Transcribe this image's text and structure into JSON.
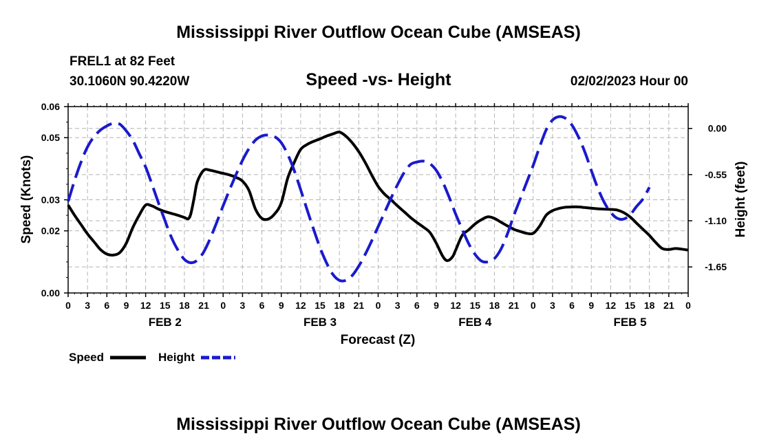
{
  "page": {
    "title": "Mississippi River Outflow Ocean Cube (AMSEAS)",
    "footer_title": "Mississippi River Outflow Ocean Cube (AMSEAS)",
    "station_line": "FREL1 at 82 Feet",
    "coords_line": "30.1060N  90.4220W",
    "date_line": "02/02/2023 Hour 00"
  },
  "chart_data": {
    "type": "line",
    "title": "Speed -vs- Height",
    "xlabel": "Forecast (Z)",
    "ylabel": "Speed (Knots)",
    "y2label": "Height (feet)",
    "x_tick_labels": [
      "0",
      "3",
      "6",
      "9",
      "12",
      "15",
      "18",
      "21",
      "0",
      "3",
      "6",
      "9",
      "12",
      "15",
      "18",
      "21",
      "0",
      "3",
      "6",
      "9",
      "12",
      "15",
      "18",
      "21",
      "0",
      "3",
      "6",
      "9",
      "12",
      "15",
      "18",
      "21",
      "0"
    ],
    "day_labels": [
      {
        "label": "FEB 2",
        "hour": 15
      },
      {
        "label": "FEB 3",
        "hour": 39
      },
      {
        "label": "FEB 4",
        "hour": 63
      },
      {
        "label": "FEB 5",
        "hour": 87
      }
    ],
    "xlim": [
      0,
      96
    ],
    "ylim": [
      0,
      0.06
    ],
    "yticks": [
      0,
      0.02,
      0.03,
      0.05,
      0.06
    ],
    "ytick_labels": [
      "0.00",
      "0.02",
      "0.03",
      "0.05",
      "0.06"
    ],
    "y2lim": [
      -1.96,
      0.26
    ],
    "y2ticks": [
      0,
      -0.55,
      -1.1,
      -1.65
    ],
    "y2tick_labels": [
      "0.00",
      "-0.55",
      "-1.10",
      "-1.65"
    ],
    "grid": true,
    "series": [
      {
        "name": "Speed",
        "axis": "left",
        "color": "#000000",
        "style": "solid",
        "points": [
          [
            0,
            0.0283
          ],
          [
            1,
            0.025
          ],
          [
            2,
            0.022
          ],
          [
            3,
            0.019
          ],
          [
            4,
            0.0165
          ],
          [
            5,
            0.014
          ],
          [
            6,
            0.0125
          ],
          [
            7,
            0.0122
          ],
          [
            8,
            0.013
          ],
          [
            9,
            0.016
          ],
          [
            10,
            0.021
          ],
          [
            11,
            0.025
          ],
          [
            12,
            0.0283
          ],
          [
            13,
            0.028
          ],
          [
            14,
            0.027
          ],
          [
            15,
            0.0262
          ],
          [
            16,
            0.0256
          ],
          [
            17,
            0.025
          ],
          [
            18,
            0.0243
          ],
          [
            18.6,
            0.0239
          ],
          [
            19,
            0.0255
          ],
          [
            19.5,
            0.0305
          ],
          [
            20,
            0.0358
          ],
          [
            21,
            0.0395
          ],
          [
            22,
            0.0395
          ],
          [
            23,
            0.039
          ],
          [
            24,
            0.0385
          ],
          [
            25,
            0.038
          ],
          [
            26,
            0.0372
          ],
          [
            27,
            0.036
          ],
          [
            28,
            0.033
          ],
          [
            29,
            0.027
          ],
          [
            30,
            0.024
          ],
          [
            31,
            0.0238
          ],
          [
            32,
            0.0255
          ],
          [
            33,
            0.029
          ],
          [
            34,
            0.037
          ],
          [
            35,
            0.042
          ],
          [
            36,
            0.0462
          ],
          [
            37,
            0.0478
          ],
          [
            38,
            0.0488
          ],
          [
            39,
            0.0496
          ],
          [
            40,
            0.0505
          ],
          [
            41,
            0.0512
          ],
          [
            42,
            0.0518
          ],
          [
            43,
            0.0505
          ],
          [
            44,
            0.0483
          ],
          [
            45,
            0.0455
          ],
          [
            46,
            0.042
          ],
          [
            47,
            0.038
          ],
          [
            48,
            0.0343
          ],
          [
            49,
            0.0318
          ],
          [
            50,
            0.03
          ],
          [
            51,
            0.028
          ],
          [
            52,
            0.0262
          ],
          [
            53,
            0.0243
          ],
          [
            54,
            0.0227
          ],
          [
            55,
            0.0212
          ],
          [
            56,
            0.0195
          ],
          [
            57,
            0.016
          ],
          [
            58,
            0.0118
          ],
          [
            58.7,
            0.0104
          ],
          [
            59.5,
            0.0116
          ],
          [
            60,
            0.0138
          ],
          [
            61,
            0.0185
          ],
          [
            62,
            0.0203
          ],
          [
            63,
            0.0222
          ],
          [
            64,
            0.0236
          ],
          [
            65,
            0.0245
          ],
          [
            66,
            0.024
          ],
          [
            67,
            0.0228
          ],
          [
            68,
            0.0216
          ],
          [
            69,
            0.0205
          ],
          [
            70,
            0.0198
          ],
          [
            71,
            0.0192
          ],
          [
            72,
            0.0192
          ],
          [
            73,
            0.0215
          ],
          [
            74,
            0.025
          ],
          [
            75,
            0.0265
          ],
          [
            76,
            0.0272
          ],
          [
            77,
            0.0276
          ],
          [
            78,
            0.0277
          ],
          [
            79,
            0.0277
          ],
          [
            80,
            0.0275
          ],
          [
            81,
            0.0273
          ],
          [
            82,
            0.0271
          ],
          [
            83,
            0.027
          ],
          [
            84,
            0.0269
          ],
          [
            85,
            0.0267
          ],
          [
            86,
            0.0259
          ],
          [
            87,
            0.0245
          ],
          [
            88,
            0.0225
          ],
          [
            89,
            0.0205
          ],
          [
            90,
            0.0185
          ],
          [
            91,
            0.0162
          ],
          [
            92,
            0.0143
          ],
          [
            93,
            0.014
          ],
          [
            94,
            0.0143
          ],
          [
            95,
            0.0141
          ],
          [
            96,
            0.0138
          ]
        ]
      },
      {
        "name": "Height",
        "axis": "right",
        "color": "#1a1acc",
        "style": "dashed",
        "points": [
          [
            0,
            -0.87
          ],
          [
            1,
            -0.62
          ],
          [
            2,
            -0.4
          ],
          [
            3,
            -0.22
          ],
          [
            4,
            -0.1
          ],
          [
            5,
            -0.02
          ],
          [
            6,
            0.03
          ],
          [
            7,
            0.06
          ],
          [
            8,
            0.05
          ],
          [
            9,
            -0.03
          ],
          [
            10,
            -0.14
          ],
          [
            11,
            -0.3
          ],
          [
            12,
            -0.46
          ],
          [
            13,
            -0.67
          ],
          [
            14,
            -0.89
          ],
          [
            15,
            -1.1
          ],
          [
            16,
            -1.3
          ],
          [
            17,
            -1.45
          ],
          [
            18,
            -1.56
          ],
          [
            19,
            -1.6
          ],
          [
            20,
            -1.57
          ],
          [
            21,
            -1.47
          ],
          [
            22,
            -1.31
          ],
          [
            23,
            -1.12
          ],
          [
            24,
            -0.92
          ],
          [
            25,
            -0.73
          ],
          [
            26,
            -0.55
          ],
          [
            27,
            -0.38
          ],
          [
            28,
            -0.24
          ],
          [
            29,
            -0.14
          ],
          [
            30,
            -0.09
          ],
          [
            31,
            -0.08
          ],
          [
            32,
            -0.1
          ],
          [
            33,
            -0.17
          ],
          [
            34,
            -0.31
          ],
          [
            35,
            -0.5
          ],
          [
            36,
            -0.73
          ],
          [
            37,
            -0.97
          ],
          [
            38,
            -1.2
          ],
          [
            39,
            -1.42
          ],
          [
            40,
            -1.6
          ],
          [
            41,
            -1.74
          ],
          [
            42,
            -1.81
          ],
          [
            43,
            -1.81
          ],
          [
            44,
            -1.75
          ],
          [
            45,
            -1.64
          ],
          [
            46,
            -1.5
          ],
          [
            47,
            -1.34
          ],
          [
            48,
            -1.17
          ],
          [
            49,
            -1.0
          ],
          [
            50,
            -0.83
          ],
          [
            51,
            -0.67
          ],
          [
            52,
            -0.53
          ],
          [
            53,
            -0.43
          ],
          [
            54,
            -0.4
          ],
          [
            55,
            -0.39
          ],
          [
            56,
            -0.42
          ],
          [
            57,
            -0.5
          ],
          [
            58,
            -0.64
          ],
          [
            59,
            -0.82
          ],
          [
            60,
            -1.02
          ],
          [
            61,
            -1.2
          ],
          [
            62,
            -1.37
          ],
          [
            63,
            -1.5
          ],
          [
            64,
            -1.58
          ],
          [
            65,
            -1.59
          ],
          [
            66,
            -1.55
          ],
          [
            67,
            -1.44
          ],
          [
            68,
            -1.26
          ],
          [
            69,
            -1.04
          ],
          [
            70,
            -0.84
          ],
          [
            71,
            -0.64
          ],
          [
            72,
            -0.44
          ],
          [
            73,
            -0.22
          ],
          [
            74,
            -0.02
          ],
          [
            75,
            0.1
          ],
          [
            76,
            0.14
          ],
          [
            77,
            0.12
          ],
          [
            78,
            0.04
          ],
          [
            79,
            -0.1
          ],
          [
            80,
            -0.28
          ],
          [
            81,
            -0.5
          ],
          [
            82,
            -0.71
          ],
          [
            83,
            -0.88
          ],
          [
            84,
            -1.0
          ],
          [
            85,
            -1.07
          ],
          [
            86,
            -1.08
          ],
          [
            87,
            -1.03
          ],
          [
            88,
            -0.93
          ],
          [
            89,
            -0.84
          ],
          [
            90,
            -0.7
          ]
        ]
      }
    ],
    "legend": [
      {
        "label": "Speed",
        "color": "#000000",
        "style": "solid"
      },
      {
        "label": "Height",
        "color": "#1a1acc",
        "style": "dashed"
      }
    ]
  }
}
